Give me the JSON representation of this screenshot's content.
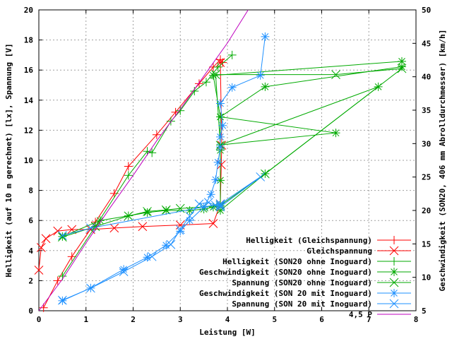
{
  "chart_data": {
    "type": "line",
    "xlabel": "Leistung [W]",
    "ylabel": "Helligkeit (auf 10 m gerechnet) [lx], Spannung [V]",
    "y2label": "Geschwindigkeit (SON20, 406 mm Abrolldurchmesser) [km/h]",
    "xlim": [
      0,
      8
    ],
    "ylim": [
      0,
      20
    ],
    "y2lim": [
      5,
      50
    ],
    "xticks": [
      "0",
      "1",
      "2",
      "3",
      "4",
      "5",
      "6",
      "7",
      "8"
    ],
    "yticks": [
      "0",
      "2",
      "4",
      "6",
      "8",
      "10",
      "12",
      "14",
      "16",
      "18",
      "20"
    ],
    "y2ticks": [
      "5",
      "10",
      "15",
      "20",
      "25",
      "30",
      "35",
      "40",
      "45",
      "50"
    ],
    "grid": true,
    "legend_position": "bottom-right",
    "series": [
      {
        "name": "Helligkeit (Gleichspannung)",
        "color": "#ff0000",
        "marker": "plus",
        "points": [
          [
            0.1,
            0.2
          ],
          [
            0.4,
            2.0
          ],
          [
            0.7,
            3.6
          ],
          [
            1.2,
            5.9
          ],
          [
            1.6,
            7.8
          ],
          [
            1.9,
            9.6
          ],
          [
            2.5,
            11.7
          ],
          [
            2.9,
            13.2
          ],
          [
            3.4,
            15.1
          ],
          [
            3.7,
            16.2
          ],
          [
            3.85,
            16.7
          ],
          [
            3.9,
            16.5
          ]
        ]
      },
      {
        "name": "Gleichspannung",
        "color": "#ff0000",
        "marker": "x",
        "points": [
          [
            0.0,
            2.7
          ],
          [
            0.05,
            4.2
          ],
          [
            0.15,
            4.8
          ],
          [
            0.4,
            5.3
          ],
          [
            0.7,
            5.4
          ],
          [
            1.1,
            5.4
          ],
          [
            1.6,
            5.5
          ],
          [
            2.2,
            5.6
          ],
          [
            3.0,
            5.7
          ],
          [
            3.7,
            5.8
          ],
          [
            3.85,
            7.1
          ],
          [
            3.87,
            9.7
          ],
          [
            3.88,
            11.0
          ],
          [
            3.85,
            16.5
          ]
        ]
      },
      {
        "name": "Helligkeit (SON20 ohne Inoguard)",
        "color": "#00aa00",
        "marker": "plus",
        "points": [
          [
            0.5,
            2.3
          ],
          [
            1.2,
            5.6
          ],
          [
            1.9,
            9.0
          ],
          [
            2.3,
            10.6
          ],
          [
            2.4,
            10.5
          ],
          [
            2.8,
            12.6
          ],
          [
            3.0,
            13.3
          ],
          [
            3.3,
            14.6
          ],
          [
            3.55,
            15.2
          ],
          [
            3.8,
            16.2
          ],
          [
            4.1,
            17.0
          ]
        ]
      },
      {
        "name": "Geschwindigkeit (SON20 ohne Inoguard)",
        "color": "#00aa00",
        "marker": "star",
        "y_axis": "right",
        "points": [
          [
            0.5,
            16.1
          ],
          [
            1.3,
            18.5
          ],
          [
            1.9,
            19.2
          ],
          [
            2.3,
            19.7
          ],
          [
            2.7,
            20.0
          ],
          [
            3.2,
            20.0
          ],
          [
            3.5,
            20.2
          ],
          [
            3.7,
            20.5
          ],
          [
            3.85,
            20.7
          ],
          [
            3.85,
            24.5
          ],
          [
            3.85,
            29.0
          ],
          [
            3.85,
            34.0
          ],
          [
            3.7,
            40.2
          ],
          [
            7.7,
            42.3
          ],
          [
            7.7,
            41.5
          ],
          [
            4.8,
            38.5
          ],
          [
            3.85,
            34.0
          ],
          [
            6.3,
            31.6
          ],
          [
            3.85,
            29.8
          ],
          [
            7.2,
            38.5
          ],
          [
            4.8,
            25.5
          ],
          [
            3.85,
            20.0
          ]
        ]
      },
      {
        "name": "Spannung (SON20 ohne Inoguard)",
        "color": "#00aa00",
        "marker": "x",
        "points": [
          [
            0.5,
            4.9
          ],
          [
            1.2,
            5.6
          ],
          [
            1.9,
            6.3
          ],
          [
            2.3,
            6.6
          ],
          [
            2.7,
            6.7
          ],
          [
            3.0,
            6.8
          ],
          [
            3.5,
            6.9
          ],
          [
            3.85,
            7.0
          ],
          [
            3.85,
            11.0
          ],
          [
            3.75,
            15.7
          ],
          [
            6.3,
            15.7
          ],
          [
            7.7,
            16.1
          ],
          [
            4.8,
            9.1
          ],
          [
            3.85,
            7.0
          ]
        ]
      },
      {
        "name": "Geschwindigkeit (SON 20 mit Inoguard)",
        "color": "#1e90ff",
        "marker": "star",
        "y_axis": "right",
        "points": [
          [
            0.5,
            6.5
          ],
          [
            1.1,
            8.4
          ],
          [
            1.8,
            11.2
          ],
          [
            2.3,
            13.0
          ],
          [
            2.7,
            14.8
          ],
          [
            3.0,
            16.9
          ],
          [
            3.2,
            18.5
          ],
          [
            3.5,
            20.5
          ],
          [
            3.65,
            22.4
          ],
          [
            3.75,
            24.6
          ],
          [
            3.8,
            27.2
          ],
          [
            3.85,
            29.5
          ],
          [
            3.85,
            31.0
          ],
          [
            3.9,
            32.7
          ],
          [
            3.85,
            36.0
          ],
          [
            4.1,
            38.4
          ],
          [
            4.7,
            40.2
          ],
          [
            4.8,
            46.0
          ]
        ]
      },
      {
        "name": "Spannung (SON 20 mit Inoguard)",
        "color": "#1e90ff",
        "marker": "x",
        "points": [
          [
            0.5,
            0.7
          ],
          [
            1.1,
            1.5
          ],
          [
            1.8,
            2.6
          ],
          [
            2.4,
            3.6
          ],
          [
            2.8,
            4.4
          ],
          [
            3.0,
            5.4
          ],
          [
            3.2,
            6.3
          ],
          [
            3.4,
            7.1
          ],
          [
            3.6,
            7.2
          ],
          [
            3.75,
            7.0
          ],
          [
            3.85,
            7.0
          ],
          [
            3.85,
            6.9
          ],
          [
            4.7,
            8.9
          ],
          [
            3.85,
            7.1
          ],
          [
            1.1,
            5.5
          ],
          [
            0.5,
            5.0
          ]
        ]
      },
      {
        "name": "4,5 P",
        "color": "#bf00bf",
        "marker": "none",
        "points": [
          [
            0.0,
            0.0
          ],
          [
            0.5,
            2.1
          ],
          [
            1.0,
            4.5
          ],
          [
            1.5,
            6.8
          ],
          [
            2.0,
            9.0
          ],
          [
            2.5,
            11.3
          ],
          [
            3.0,
            13.4
          ],
          [
            3.5,
            15.6
          ],
          [
            4.0,
            17.8
          ],
          [
            4.44,
            20.0
          ]
        ]
      }
    ]
  }
}
